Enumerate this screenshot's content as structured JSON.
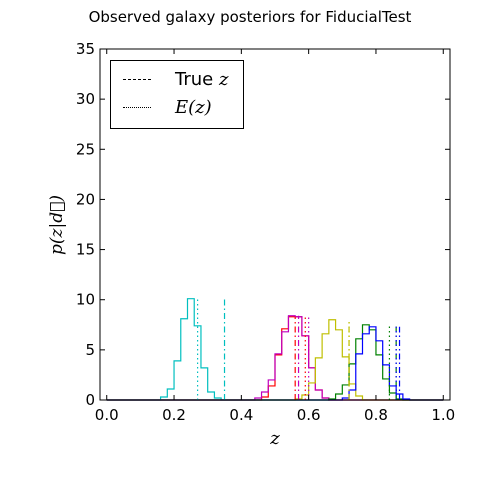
{
  "title": "Observed galaxy posteriors for FiducialTest",
  "chart_data": {
    "type": "line",
    "title": "Observed galaxy posteriors for FiducialTest",
    "xlabel": "z",
    "ylabel": "p(z|d⃗)",
    "xlim": [
      -0.02,
      1.02
    ],
    "ylim": [
      0,
      35
    ],
    "xticks": [
      0.0,
      0.2,
      0.4,
      0.6,
      0.8,
      1.0
    ],
    "yticks": [
      0,
      5,
      10,
      15,
      20,
      25,
      30,
      35
    ],
    "xtick_labels": [
      "0.0",
      "0.2",
      "0.4",
      "0.6",
      "0.8",
      "1.0"
    ],
    "ytick_labels": [
      "0",
      "5",
      "10",
      "15",
      "20",
      "25",
      "30",
      "35"
    ],
    "grid": false,
    "legend": {
      "position": "top-left",
      "entries": [
        {
          "style": "dashdot",
          "label_prefix": "True ",
          "label_math": "z"
        },
        {
          "style": "dotted",
          "label_prefix": "",
          "label_math": "E(z)"
        }
      ]
    },
    "bin_edges": [
      0.0,
      0.02,
      0.04,
      0.06,
      0.08,
      0.1,
      0.12,
      0.14,
      0.16,
      0.18,
      0.2,
      0.22,
      0.24,
      0.26,
      0.28,
      0.3,
      0.32,
      0.34,
      0.36,
      0.38,
      0.4,
      0.42,
      0.44,
      0.46,
      0.48,
      0.5,
      0.52,
      0.54,
      0.56,
      0.58,
      0.6,
      0.62,
      0.64,
      0.66,
      0.68,
      0.7,
      0.72,
      0.74,
      0.76,
      0.78,
      0.8,
      0.82,
      0.84,
      0.86,
      0.88,
      0.9,
      0.92,
      0.94,
      0.96,
      0.98,
      1.0
    ],
    "series": [
      {
        "color": "#00bfbf",
        "true_z": 0.35,
        "mean_z": 0.27,
        "values": [
          0,
          0,
          0,
          0,
          0,
          0,
          0,
          0,
          0.3,
          1.1,
          3.9,
          8.1,
          10.1,
          7.4,
          3.2,
          0.8,
          0.2,
          0,
          0,
          0,
          0,
          0,
          0,
          0,
          0,
          0,
          0,
          0,
          0,
          0,
          0,
          0,
          0,
          0,
          0,
          0,
          0,
          0,
          0,
          0,
          0,
          0,
          0,
          0,
          0,
          0,
          0,
          0,
          0,
          0
        ]
      },
      {
        "color": "#ff0000",
        "true_z": 0.56,
        "mean_z": 0.59,
        "values": [
          0,
          0,
          0,
          0,
          0,
          0,
          0,
          0,
          0,
          0,
          0,
          0,
          0,
          0,
          0,
          0,
          0,
          0,
          0,
          0,
          0,
          0,
          0,
          0.3,
          1.4,
          4.5,
          7.1,
          8.3,
          8.3,
          6.4,
          3.2,
          1.0,
          0.2,
          0,
          0,
          0,
          0,
          0,
          0,
          0,
          0,
          0,
          0,
          0,
          0,
          0,
          0,
          0,
          0,
          0
        ]
      },
      {
        "color": "#bf00bf",
        "true_z": 0.57,
        "mean_z": 0.6,
        "values": [
          0,
          0,
          0,
          0,
          0,
          0,
          0,
          0,
          0,
          0,
          0,
          0,
          0,
          0,
          0,
          0,
          0,
          0,
          0,
          0,
          0,
          0,
          0.2,
          0.8,
          2.0,
          4.6,
          6.8,
          8.4,
          8.3,
          6.4,
          3.2,
          1.0,
          0.2,
          0,
          0,
          0,
          0,
          0,
          0,
          0,
          0,
          0,
          0,
          0,
          0,
          0,
          0,
          0,
          0,
          0
        ]
      },
      {
        "color": "#bfbf00",
        "true_z": 0.72,
        "mean_z": 0.72,
        "values": [
          0,
          0,
          0,
          0,
          0,
          0,
          0,
          0,
          0,
          0,
          0,
          0,
          0,
          0,
          0,
          0,
          0,
          0,
          0,
          0,
          0,
          0,
          0,
          0,
          0,
          0,
          0,
          0,
          0.1,
          0.5,
          1.7,
          4.2,
          6.6,
          8.0,
          7.0,
          4.3,
          1.6,
          0.4,
          0,
          0,
          0,
          0,
          0,
          0,
          0,
          0,
          0,
          0,
          0,
          0
        ]
      },
      {
        "color": "#008000",
        "true_z": 0.86,
        "mean_z": 0.84,
        "values": [
          0,
          0,
          0,
          0,
          0,
          0,
          0,
          0,
          0,
          0,
          0,
          0,
          0,
          0,
          0,
          0,
          0,
          0,
          0,
          0,
          0,
          0,
          0,
          0,
          0,
          0,
          0,
          0,
          0,
          0,
          0,
          0,
          0,
          0.1,
          0.6,
          1.5,
          3.6,
          6.1,
          7.5,
          7.0,
          4.5,
          2.1,
          0.7,
          0.1,
          0,
          0,
          0,
          0,
          0,
          0
        ]
      },
      {
        "color": "#0000ff",
        "true_z": 0.87,
        "mean_z": 0.86,
        "values": [
          0,
          0,
          0,
          0,
          0,
          0,
          0,
          0,
          0,
          0,
          0,
          0,
          0,
          0,
          0,
          0,
          0,
          0,
          0,
          0,
          0,
          0,
          0,
          0,
          0,
          0,
          0,
          0,
          0,
          0,
          0,
          0,
          0,
          0,
          0,
          0.2,
          1.0,
          4.6,
          6.6,
          7.3,
          5.9,
          3.5,
          1.4,
          0.6,
          0.1,
          0,
          0,
          0,
          0,
          0
        ]
      }
    ]
  }
}
